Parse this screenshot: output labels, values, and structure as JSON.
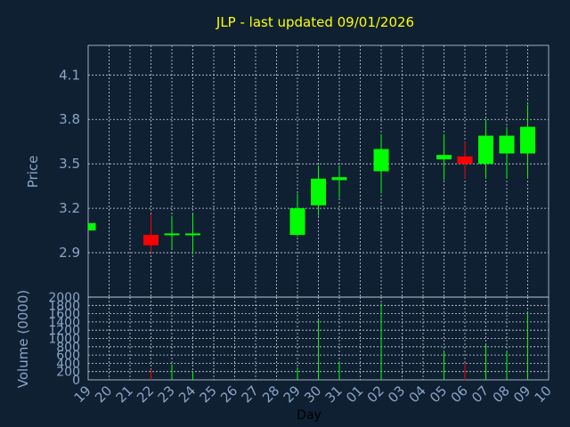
{
  "chart_data": {
    "type": "candlestick",
    "title": "JLP - last updated 09/01/2026",
    "xlabel": "Day",
    "colors": {
      "background": "#0f2033",
      "up": "#00ff00",
      "down": "#ff0000",
      "title": "#ffff00",
      "tick": "#8aa4c4",
      "grid": "#c8d0dc"
    },
    "x_ticks": [
      "19",
      "20",
      "21",
      "22",
      "23",
      "24",
      "25",
      "26",
      "27",
      "28",
      "29",
      "30",
      "31",
      "01",
      "02",
      "03",
      "04",
      "05",
      "06",
      "07",
      "08",
      "09",
      "10"
    ],
    "price_panel": {
      "ylabel": "Price",
      "ylim": [
        2.6,
        4.3
      ],
      "y_ticks": [
        "2.9",
        "3.2",
        "3.5",
        "3.8",
        "4.1"
      ],
      "y_tick_values": [
        2.9,
        3.2,
        3.5,
        3.8,
        4.1
      ],
      "candles": [
        {
          "day": "19",
          "open": 3.05,
          "high": 3.1,
          "low": 3.05,
          "close": 3.1
        },
        {
          "day": "22",
          "open": 3.02,
          "high": 3.16,
          "low": 2.9,
          "close": 2.95
        },
        {
          "day": "23",
          "open": 3.02,
          "high": 3.15,
          "low": 2.93,
          "close": 3.03
        },
        {
          "day": "24",
          "open": 3.02,
          "high": 3.16,
          "low": 2.89,
          "close": 3.03
        },
        {
          "day": "29",
          "open": 3.02,
          "high": 3.3,
          "low": 3.01,
          "close": 3.2
        },
        {
          "day": "30",
          "open": 3.22,
          "high": 3.49,
          "low": 3.15,
          "close": 3.4
        },
        {
          "day": "31",
          "open": 3.39,
          "high": 3.49,
          "low": 3.27,
          "close": 3.41
        },
        {
          "day": "02",
          "open": 3.45,
          "high": 3.7,
          "low": 3.3,
          "close": 3.6
        },
        {
          "day": "05",
          "open": 3.53,
          "high": 3.7,
          "low": 3.39,
          "close": 3.56
        },
        {
          "day": "06",
          "open": 3.55,
          "high": 3.65,
          "low": 3.4,
          "close": 3.5
        },
        {
          "day": "07",
          "open": 3.5,
          "high": 3.8,
          "low": 3.4,
          "close": 3.69
        },
        {
          "day": "08",
          "open": 3.57,
          "high": 3.75,
          "low": 3.4,
          "close": 3.69
        },
        {
          "day": "09",
          "open": 3.57,
          "high": 3.9,
          "low": 3.4,
          "close": 3.75
        }
      ]
    },
    "volume_panel": {
      "ylabel": "Volume (0000)",
      "ylim": [
        0,
        2000
      ],
      "y_ticks": [
        "0",
        "200",
        "400",
        "600",
        "800",
        "1000",
        "1200",
        "1400",
        "1600",
        "1800",
        "2000"
      ],
      "y_tick_values": [
        0,
        200,
        400,
        600,
        800,
        1000,
        1200,
        1400,
        1600,
        1800,
        2000
      ],
      "bars": [
        {
          "day": "22",
          "value": 250,
          "direction": "down"
        },
        {
          "day": "23",
          "value": 380,
          "direction": "up"
        },
        {
          "day": "24",
          "value": 200,
          "direction": "up"
        },
        {
          "day": "29",
          "value": 300,
          "direction": "up"
        },
        {
          "day": "30",
          "value": 1450,
          "direction": "up"
        },
        {
          "day": "31",
          "value": 450,
          "direction": "up"
        },
        {
          "day": "02",
          "value": 1850,
          "direction": "up"
        },
        {
          "day": "05",
          "value": 700,
          "direction": "up"
        },
        {
          "day": "06",
          "value": 400,
          "direction": "down"
        },
        {
          "day": "07",
          "value": 850,
          "direction": "up"
        },
        {
          "day": "08",
          "value": 700,
          "direction": "up"
        },
        {
          "day": "09",
          "value": 1600,
          "direction": "up"
        }
      ]
    }
  }
}
